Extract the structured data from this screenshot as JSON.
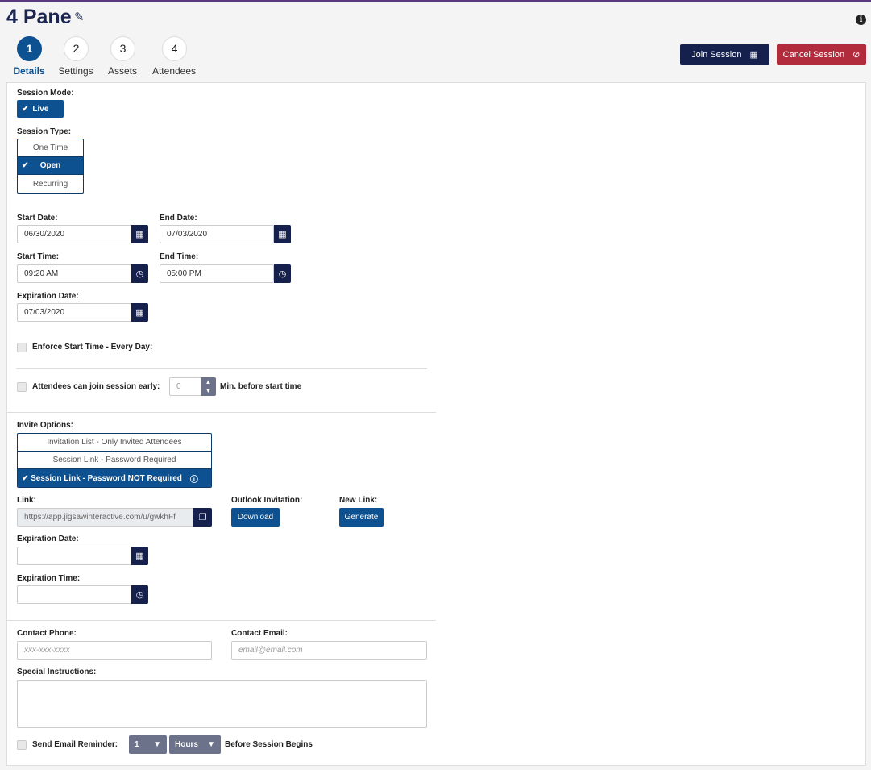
{
  "header": {
    "title": "4 Pane",
    "join": "Join Session",
    "cancel": "Cancel Session"
  },
  "steps": [
    {
      "num": "1",
      "label": "Details"
    },
    {
      "num": "2",
      "label": "Settings"
    },
    {
      "num": "3",
      "label": "Assets"
    },
    {
      "num": "4",
      "label": "Attendees"
    }
  ],
  "session_mode": {
    "label": "Session Mode:",
    "value": "Live"
  },
  "session_type": {
    "label": "Session Type:",
    "options": [
      "One Time",
      "Open",
      "Recurring"
    ],
    "selected": "Open"
  },
  "dates": {
    "start_date_label": "Start Date:",
    "start_date": "06/30/2020",
    "end_date_label": "End Date:",
    "end_date": "07/03/2020",
    "start_time_label": "Start Time:",
    "start_time": "09:20 AM",
    "end_time_label": "End Time:",
    "end_time": "05:00 PM",
    "expiration_label": "Expiration Date:",
    "expiration": "07/03/2020"
  },
  "enforce": {
    "label": "Enforce Start Time - Every Day:",
    "checked": false
  },
  "early": {
    "label": "Attendees can join session early:",
    "value": "0",
    "suffix": "Min. before start time",
    "checked": false
  },
  "invite": {
    "label": "Invite Options:",
    "options": [
      "Invitation List - Only Invited Attendees",
      "Session Link - Password Required",
      "Session Link - Password NOT Required"
    ],
    "selected": "Session Link - Password NOT Required"
  },
  "link": {
    "label": "Link:",
    "value": "https://app.jigsawinteractive.com/u/gwkhFf",
    "outlook_label": "Outlook Invitation:",
    "download": "Download",
    "newlink_label": "New Link:",
    "generate": "Generate"
  },
  "link_exp": {
    "date_label": "Expiration Date:",
    "date": "",
    "time_label": "Expiration Time:",
    "time": ""
  },
  "contact": {
    "phone_label": "Contact Phone:",
    "phone_placeholder": "xxx-xxx-xxxx",
    "email_label": "Contact Email:",
    "email_placeholder": "email@email.com",
    "instructions_label": "Special Instructions:"
  },
  "reminder": {
    "label": "Send Email Reminder:",
    "amount": "1",
    "unit": "Hours",
    "suffix": "Before Session Begins",
    "checked": false
  },
  "colors": {
    "primary": "#0d5191",
    "navy": "#15204d",
    "danger": "#b12b3c"
  }
}
